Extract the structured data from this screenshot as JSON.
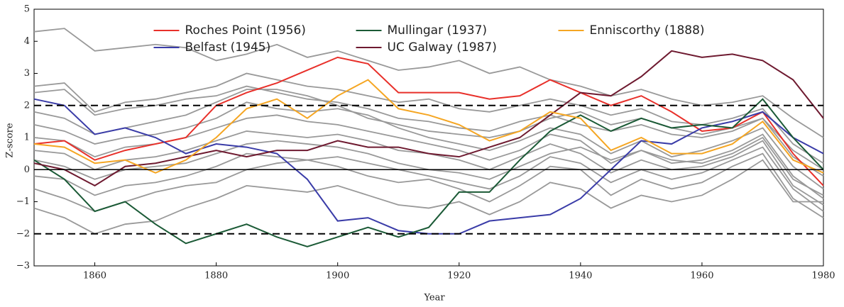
{
  "chart_data": {
    "type": "line",
    "x": [
      1850,
      1855,
      1860,
      1865,
      1870,
      1875,
      1880,
      1885,
      1890,
      1895,
      1900,
      1905,
      1910,
      1915,
      1920,
      1925,
      1930,
      1935,
      1940,
      1945,
      1950,
      1955,
      1960,
      1965,
      1970,
      1975,
      1980
    ],
    "xlabel": "Year",
    "ylabel": "Z-score",
    "xlim": [
      1850,
      1980
    ],
    "xticks": [
      1860,
      1880,
      1900,
      1920,
      1940,
      1960,
      1980
    ],
    "ylim": [
      -3,
      5
    ],
    "yticks": [
      {
        "value": -3,
        "label": "−3"
      },
      {
        "value": -2,
        "label": "−2"
      },
      {
        "value": -1,
        "label": "−1"
      },
      0,
      1,
      2,
      3,
      4,
      5
    ],
    "hlines": [
      {
        "value": 2,
        "style": "dashed"
      },
      {
        "value": -2,
        "style": "dashed"
      },
      {
        "value": 0,
        "style": "solid"
      }
    ],
    "legend": "upper center",
    "legend_columns": 3,
    "series": [
      {
        "name": "Roches Point (1956)",
        "color": "#e8302a",
        "values": [
          0.8,
          0.9,
          0.3,
          0.6,
          0.8,
          1.0,
          2.0,
          2.4,
          2.7,
          3.1,
          3.5,
          3.3,
          2.4,
          2.4,
          2.4,
          2.2,
          2.3,
          2.8,
          2.4,
          2.0,
          2.3,
          1.8,
          1.2,
          1.3,
          1.8,
          0.5,
          -0.5
        ]
      },
      {
        "name": "Belfast (1945)",
        "color": "#3a3ca8",
        "values": [
          2.2,
          2.0,
          1.1,
          1.3,
          1.0,
          0.5,
          0.8,
          0.7,
          0.5,
          -0.3,
          -1.6,
          -1.5,
          -1.9,
          -2.0,
          -2.0,
          -1.6,
          -1.5,
          -1.4,
          -0.9,
          0.0,
          0.9,
          0.8,
          1.3,
          1.5,
          1.8,
          1.0,
          0.5
        ]
      },
      {
        "name": "Mullingar (1937)",
        "color": "#1b5a36",
        "values": [
          0.3,
          -0.3,
          -1.3,
          -1.0,
          -1.7,
          -2.3,
          -2.0,
          -1.7,
          -2.1,
          -2.4,
          -2.1,
          -1.8,
          -2.1,
          -1.8,
          -0.7,
          -0.7,
          0.3,
          1.2,
          1.7,
          1.2,
          1.6,
          1.3,
          1.4,
          1.3,
          2.2,
          1.0,
          0.0
        ]
      },
      {
        "name": "UC Galway (1987)",
        "color": "#6e1a30",
        "values": [
          0.2,
          0.0,
          -0.5,
          0.1,
          0.2,
          0.4,
          0.6,
          0.4,
          0.6,
          0.6,
          0.9,
          0.7,
          0.7,
          0.5,
          0.4,
          0.7,
          1.0,
          1.7,
          2.4,
          2.3,
          2.9,
          3.7,
          3.5,
          3.6,
          3.4,
          2.8,
          1.6
        ]
      },
      {
        "name": "Enniscorthy (1888)",
        "color": "#f5a623",
        "values": [
          0.8,
          0.7,
          0.2,
          0.3,
          -0.1,
          0.3,
          1.0,
          1.9,
          2.2,
          1.6,
          2.3,
          2.8,
          1.9,
          1.7,
          1.4,
          0.9,
          1.2,
          1.8,
          1.6,
          0.6,
          1.0,
          0.5,
          0.5,
          0.8,
          1.5,
          0.3,
          -0.1
        ]
      },
      {
        "color": "#999999",
        "values": [
          4.3,
          4.4,
          3.7,
          3.8,
          3.9,
          3.8,
          3.4,
          3.6,
          3.9,
          3.5,
          3.7,
          3.4,
          3.1,
          3.2,
          3.4,
          3.0,
          3.2,
          2.8,
          2.6,
          2.3,
          2.5,
          2.2,
          2.0,
          2.1,
          2.3,
          1.6,
          1.0
        ]
      },
      {
        "color": "#999999",
        "values": [
          2.6,
          2.7,
          1.8,
          2.1,
          2.2,
          2.4,
          2.6,
          3.0,
          2.8,
          2.6,
          2.5,
          2.3,
          2.1,
          2.2,
          1.9,
          1.8,
          2.0,
          2.2,
          2.0,
          1.7,
          1.9,
          1.5,
          1.4,
          1.6,
          1.9,
          0.8,
          0.2
        ]
      },
      {
        "color": "#999999",
        "values": [
          2.4,
          2.5,
          1.7,
          1.9,
          2.0,
          2.2,
          2.3,
          2.6,
          2.4,
          2.2,
          2.1,
          1.9,
          1.6,
          1.5,
          1.3,
          1.2,
          1.5,
          1.7,
          1.4,
          1.2,
          1.4,
          1.1,
          1.0,
          1.2,
          1.6,
          0.4,
          -0.2
        ]
      },
      {
        "color": "#999999",
        "values": [
          1.4,
          1.2,
          0.8,
          1.0,
          1.1,
          1.3,
          1.6,
          2.1,
          1.9,
          1.8,
          1.9,
          1.7,
          1.3,
          1.0,
          0.8,
          0.6,
          0.9,
          1.3,
          1.1,
          0.5,
          0.9,
          0.4,
          0.6,
          0.9,
          1.3,
          0.1,
          -0.6
        ]
      },
      {
        "color": "#999999",
        "values": [
          1.0,
          0.9,
          0.4,
          0.7,
          0.8,
          1.0,
          1.3,
          1.6,
          1.7,
          1.5,
          1.4,
          1.2,
          1.0,
          0.8,
          0.6,
          0.3,
          0.6,
          1.1,
          0.9,
          0.2,
          0.6,
          0.2,
          0.3,
          0.6,
          1.1,
          -0.2,
          -0.9
        ]
      },
      {
        "color": "#999999",
        "values": [
          0.6,
          0.5,
          0.0,
          0.3,
          0.4,
          0.6,
          0.9,
          1.2,
          1.1,
          1.0,
          1.1,
          0.9,
          0.6,
          0.5,
          0.3,
          0.0,
          0.4,
          0.8,
          0.5,
          -0.1,
          0.3,
          0.0,
          0.1,
          0.4,
          0.9,
          -0.5,
          -1.1
        ]
      },
      {
        "color": "#999999",
        "values": [
          -0.2,
          -0.3,
          -0.8,
          -0.5,
          -0.4,
          -0.2,
          0.1,
          0.5,
          0.4,
          0.3,
          0.4,
          0.2,
          0.0,
          -0.2,
          -0.4,
          -0.6,
          -0.2,
          0.4,
          0.2,
          -0.4,
          0.0,
          -0.3,
          -0.1,
          0.3,
          0.7,
          -0.6,
          -1.3
        ]
      },
      {
        "color": "#999999",
        "values": [
          -0.6,
          -0.9,
          -1.3,
          -1.0,
          -0.7,
          -0.5,
          -0.4,
          0.0,
          0.2,
          0.3,
          0.1,
          -0.2,
          -0.4,
          -0.3,
          -0.6,
          -1.0,
          -0.5,
          0.1,
          0.0,
          -0.8,
          -0.3,
          -0.6,
          -0.4,
          0.1,
          0.5,
          -0.9,
          -1.5
        ]
      },
      {
        "color": "#999999",
        "values": [
          -1.2,
          -1.5,
          -2.0,
          -1.7,
          -1.6,
          -1.2,
          -0.9,
          -0.5,
          -0.6,
          -0.7,
          -0.5,
          -0.8,
          -1.1,
          -1.2,
          -1.0,
          -1.4,
          -1.0,
          -0.4,
          -0.6,
          -1.2,
          -0.8,
          -1.0,
          -0.8,
          -0.3,
          0.3,
          -1.0,
          -1.0
        ]
      },
      {
        "color": "#999999",
        "values": [
          1.8,
          1.6,
          1.1,
          1.3,
          1.5,
          1.7,
          2.1,
          2.5,
          2.5,
          2.3,
          2.0,
          1.6,
          1.4,
          1.2,
          1.1,
          1.0,
          1.2,
          1.6,
          1.8,
          1.4,
          1.6,
          1.3,
          1.1,
          1.3,
          1.6,
          0.6,
          0.0
        ]
      },
      {
        "color": "#999999",
        "values": [
          0.3,
          0.1,
          -0.3,
          0.0,
          0.1,
          0.2,
          0.5,
          0.8,
          0.9,
          0.8,
          0.7,
          0.5,
          0.2,
          0.0,
          -0.1,
          -0.3,
          0.1,
          0.5,
          0.7,
          0.3,
          0.6,
          0.3,
          0.2,
          0.5,
          1.0,
          -0.3,
          -0.8
        ]
      }
    ]
  }
}
